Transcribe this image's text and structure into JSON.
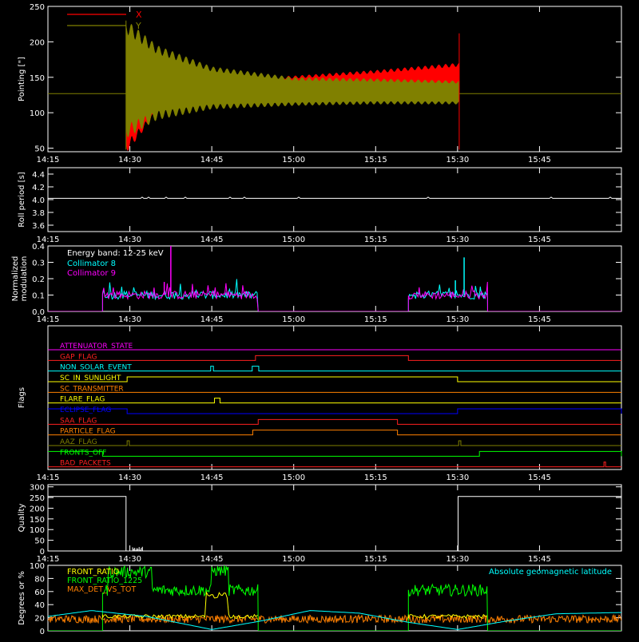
{
  "time_axis": {
    "start_min": 855,
    "end_min": 960,
    "tick_labels": [
      "14:15",
      "14:30",
      "14:45",
      "15:00",
      "15:15",
      "15:30",
      "15:45"
    ],
    "tick_values": [
      855,
      870,
      885,
      900,
      915,
      930,
      945
    ]
  },
  "chart_data": [
    {
      "id": "pointing",
      "type": "area",
      "ylabel": "Pointing [\"]",
      "ylim": [
        45,
        250
      ],
      "yticks": [
        50,
        100,
        150,
        200,
        250
      ],
      "legend": [
        {
          "name": "X",
          "color": "#ff0000"
        },
        {
          "name": "Y",
          "color": "#808000"
        }
      ],
      "baseline": 127,
      "active_range": [
        869.3,
        930.3
      ],
      "series": [
        {
          "name": "X",
          "color": "#ff0000",
          "envelope_x": [
            869.5,
            875,
            885,
            900,
            915,
            930
          ],
          "lower": [
            45,
            100,
            110,
            118,
            122,
            125
          ],
          "upper": [
            175,
            145,
            148,
            152,
            160,
            170
          ]
        },
        {
          "name": "Y",
          "color": "#808000",
          "envelope_x": [
            869.5,
            875,
            885,
            900,
            915,
            930
          ],
          "lower": [
            65,
            90,
            105,
            110,
            112,
            112
          ],
          "upper": [
            230,
            195,
            165,
            150,
            148,
            145
          ]
        }
      ]
    },
    {
      "id": "roll",
      "type": "line",
      "ylabel": "Roll period [s]",
      "ylim": [
        3.5,
        4.5
      ],
      "yticks": [
        3.6,
        3.8,
        4.0,
        4.2,
        4.4
      ],
      "series": [
        {
          "name": "",
          "color": "#ffffff",
          "value": 4.02
        }
      ]
    },
    {
      "id": "modulation",
      "type": "line",
      "ylabel": [
        "Normalized",
        "modulation"
      ],
      "ylim": [
        0,
        0.4
      ],
      "yticks": [
        0.0,
        0.1,
        0.2,
        0.3,
        0.4
      ],
      "legend_title": "Energy band: 12-25 keV",
      "legend": [
        {
          "name": "Collimator 8",
          "color": "#00ffff"
        },
        {
          "name": "Collimator 9",
          "color": "#ff00ff"
        }
      ],
      "segments": [
        [
          865,
          893.5
        ],
        [
          921,
          935.5
        ]
      ],
      "base_level": 0.1,
      "spikes": [
        {
          "x": 877.5,
          "y": 0.4,
          "color": "#ff00ff"
        },
        {
          "x": 876.3,
          "y": 0.18,
          "color": "#ff00ff"
        },
        {
          "x": 931.2,
          "y": 0.33,
          "color": "#00ffff"
        },
        {
          "x": 929.6,
          "y": 0.19,
          "color": "#00ffff"
        }
      ]
    },
    {
      "id": "flags",
      "type": "line",
      "ylabel": "Flags",
      "flags": [
        {
          "name": "ATTENUATOR_STATE",
          "color": "#ff00ff",
          "high": []
        },
        {
          "name": "GAP_FLAG",
          "color": "#ff2020",
          "high": [
            [
              893,
              921
            ]
          ]
        },
        {
          "name": "NON_SOLAR_EVENT",
          "color": "#00ffff",
          "high": [
            [
              884.8,
              885.3
            ],
            [
              892.4,
              893.6
            ]
          ]
        },
        {
          "name": "SC_IN_SUNLIGHT",
          "color": "#ffff00",
          "high": [
            [
              869.5,
              930
            ]
          ]
        },
        {
          "name": "SC_TRANSMITTER",
          "color": "#ff8000",
          "high": []
        },
        {
          "name": "FLARE_FLAG",
          "color": "#ffff00",
          "high": [
            [
              885.5,
              886.5
            ]
          ]
        },
        {
          "name": "ECLIPSE_FLAG",
          "color": "#0000ff",
          "high": [
            [
              855,
              869.5
            ],
            [
              930,
              960
            ]
          ]
        },
        {
          "name": "SAA_FLAG",
          "color": "#ff2020",
          "high": [
            [
              893.5,
              919
            ]
          ]
        },
        {
          "name": "PARTICLE_FLAG",
          "color": "#ff8000",
          "high": [
            [
              892.5,
              919
            ]
          ]
        },
        {
          "name": "AAZ_FLAG",
          "color": "#808000",
          "high": [
            [
              869.5,
              869.9
            ],
            [
              930.2,
              930.6
            ]
          ]
        },
        {
          "name": "FRONTS_OFF",
          "color": "#00ff00",
          "high": [
            [
              855,
              865
            ],
            [
              934,
              960
            ]
          ]
        },
        {
          "name": "BAD_PACKETS",
          "color": "#ff2020",
          "high": [
            [
              956.8,
              957.1
            ]
          ]
        }
      ]
    },
    {
      "id": "quality",
      "type": "line",
      "ylabel": "Quality",
      "ylim": [
        0,
        310
      ],
      "yticks": [
        0,
        50,
        100,
        150,
        200,
        250,
        300
      ],
      "series": [
        {
          "name": "",
          "color": "#ffffff",
          "x": [
            855,
            869.3,
            869.3,
            930.1,
            930.1,
            960
          ],
          "y": [
            255,
            255,
            0,
            0,
            255,
            255
          ]
        }
      ]
    },
    {
      "id": "geomag",
      "type": "line",
      "ylabel": "Degrees or %",
      "ylim": [
        0,
        100
      ],
      "yticks": [
        0,
        20,
        40,
        60,
        80,
        100
      ],
      "legend_left": [
        {
          "name": "FRONT_RATIO",
          "color": "#ffff00"
        },
        {
          "name": "FRONT_RATIO_1225",
          "color": "#00ff00"
        },
        {
          "name": "MAX_DET_VS_TOT",
          "color": "#ff8000"
        }
      ],
      "legend_right": [
        {
          "name": "Absolute geomagnetic latitude",
          "color": "#00ffff"
        }
      ],
      "geomag_x": [
        855,
        863,
        873,
        885,
        894,
        903,
        912,
        921,
        930,
        939,
        948,
        960
      ],
      "geomag_y": [
        22,
        31,
        22,
        2,
        15,
        31,
        27,
        13,
        2,
        15,
        26,
        28
      ],
      "front_ratio_segments": [
        [
          865,
          893.5
        ],
        [
          921,
          935.5
        ]
      ],
      "front_ratio_level": 62,
      "front_ratio_bumps": [
        [
          866,
          874,
          90
        ],
        [
          885,
          888,
          92
        ]
      ],
      "max_det_level": 18
    }
  ]
}
